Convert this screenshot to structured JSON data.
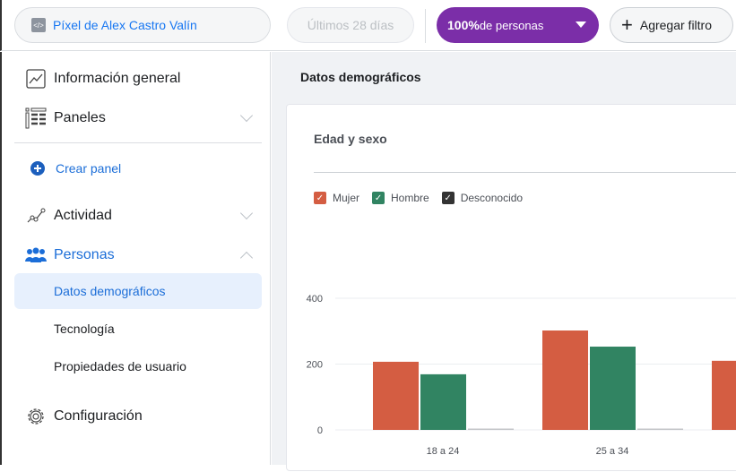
{
  "topbar": {
    "pixel_label": "Píxel de Alex Castro Valín",
    "date_range": "Últimos 28 días",
    "audience_pct": "100%",
    "audience_rest": " de personas",
    "add_filter": "Agregar filtro"
  },
  "sidebar": {
    "overview": "Información general",
    "panels": "Paneles",
    "create_panel": "Crear panel",
    "activity": "Actividad",
    "people": "Personas",
    "people_sub": [
      "Datos demográficos",
      "Tecnología",
      "Propiedades de usuario"
    ],
    "settings": "Configuración"
  },
  "main": {
    "title": "Datos demográficos",
    "card_title": "Edad y sexo"
  },
  "colors": {
    "mujer": "#d45d42",
    "hombre": "#318462",
    "desconocido": "#333333",
    "accent": "#1877f2",
    "audience": "#7b2ea8"
  },
  "chart_data": {
    "type": "bar",
    "categories": [
      "18 a 24",
      "25 a 34",
      ""
    ],
    "series": [
      {
        "name": "Mujer",
        "values": [
          207,
          302,
          210
        ]
      },
      {
        "name": "Hombre",
        "values": [
          169,
          253,
          null
        ]
      },
      {
        "name": "Desconocido",
        "values": [
          1,
          1,
          null
        ]
      }
    ],
    "yticks": [
      "0",
      "200",
      "400"
    ],
    "ylim": [
      0,
      400
    ],
    "grid": true,
    "legend": "top-left"
  }
}
